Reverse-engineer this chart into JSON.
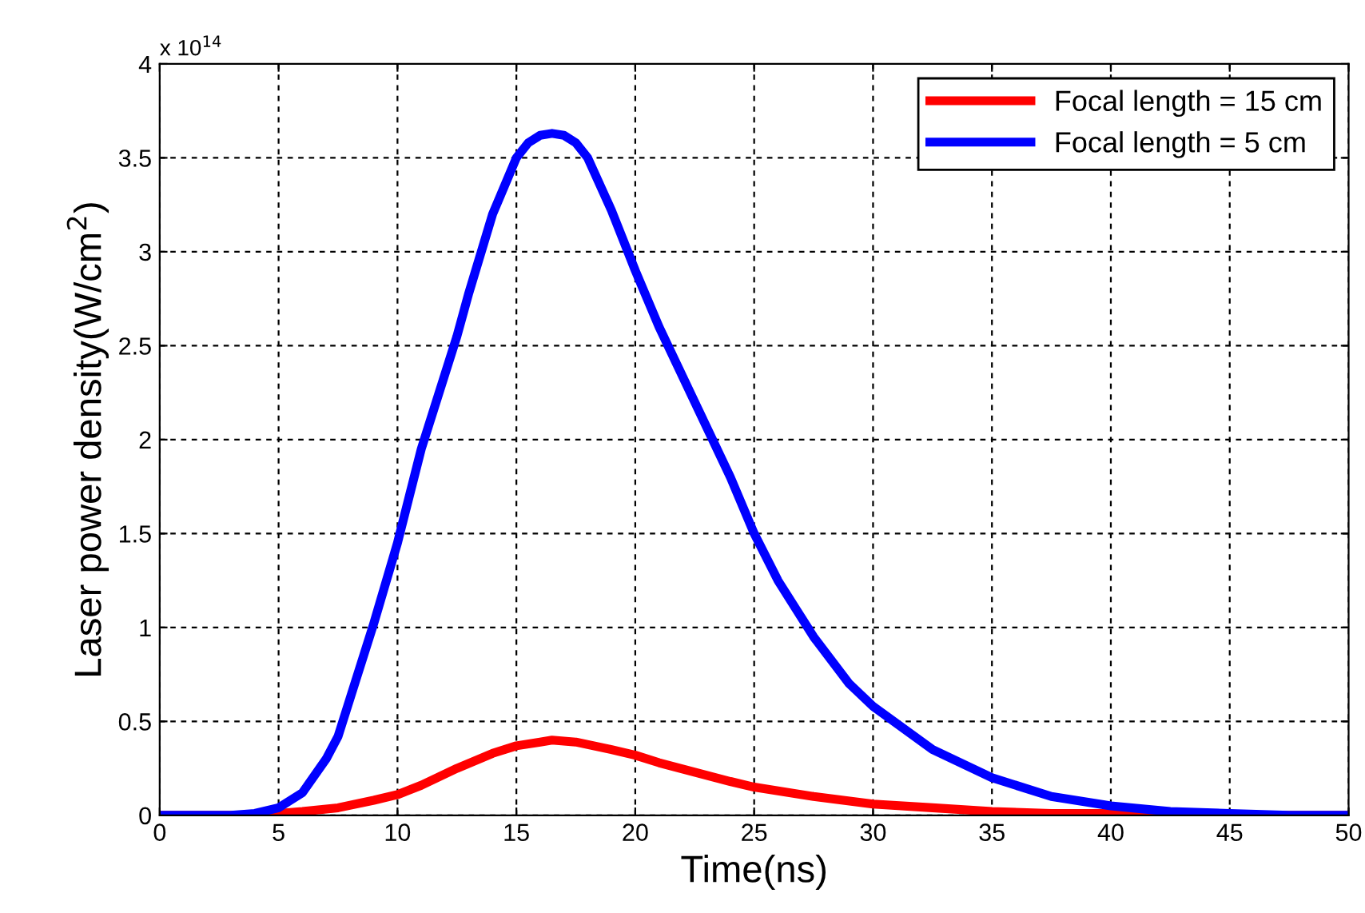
{
  "chart_data": {
    "type": "line",
    "xlabel": "Time(ns)",
    "ylabel": "Laser power density(W/cm$^{2}$)",
    "annotations": [
      "x 10$^{14}$"
    ],
    "xlim": [
      0,
      50
    ],
    "ylim": [
      0,
      4
    ],
    "xticks": [
      0,
      5,
      10,
      15,
      20,
      25,
      30,
      35,
      40,
      45,
      50
    ],
    "yticks": [
      0,
      0.5,
      1,
      1.5,
      2,
      2.5,
      3,
      3.5,
      4
    ],
    "grid": true,
    "legend": "top right",
    "line_style": "solid",
    "marker": "none",
    "series": [
      {
        "name": "Focal length = 15 cm",
        "color": "#ff0000",
        "x": [
          0,
          4,
          5,
          6,
          7.5,
          9,
          10,
          11,
          12.5,
          14,
          15,
          16,
          16.5,
          17.5,
          19,
          20,
          21,
          22.5,
          24,
          25,
          27.5,
          30,
          32.5,
          35,
          37.5,
          40,
          45,
          50
        ],
        "values": [
          0,
          0,
          0.01,
          0.02,
          0.04,
          0.08,
          0.11,
          0.16,
          0.25,
          0.33,
          0.37,
          0.39,
          0.4,
          0.39,
          0.35,
          0.32,
          0.28,
          0.23,
          0.18,
          0.15,
          0.1,
          0.06,
          0.04,
          0.02,
          0.01,
          0.01,
          0,
          0
        ]
      },
      {
        "name": "Focal length = 5 cm",
        "color": "#0000ff",
        "x": [
          0,
          3,
          4,
          5,
          6,
          7,
          7.5,
          8,
          9,
          10,
          11,
          12,
          12.5,
          13,
          14,
          15,
          15.5,
          16,
          16.5,
          17,
          17.5,
          18,
          19,
          20,
          21,
          22.5,
          24,
          25,
          26,
          27.5,
          29,
          30,
          32.5,
          35,
          37.5,
          40,
          42.5,
          45,
          47.5,
          50
        ],
        "values": [
          0,
          0,
          0.01,
          0.04,
          0.12,
          0.3,
          0.42,
          0.62,
          1.02,
          1.45,
          1.95,
          2.35,
          2.55,
          2.78,
          3.2,
          3.5,
          3.58,
          3.62,
          3.63,
          3.62,
          3.58,
          3.5,
          3.22,
          2.9,
          2.6,
          2.2,
          1.8,
          1.5,
          1.25,
          0.95,
          0.7,
          0.58,
          0.35,
          0.2,
          0.1,
          0.05,
          0.02,
          0.01,
          0,
          0
        ]
      }
    ]
  }
}
